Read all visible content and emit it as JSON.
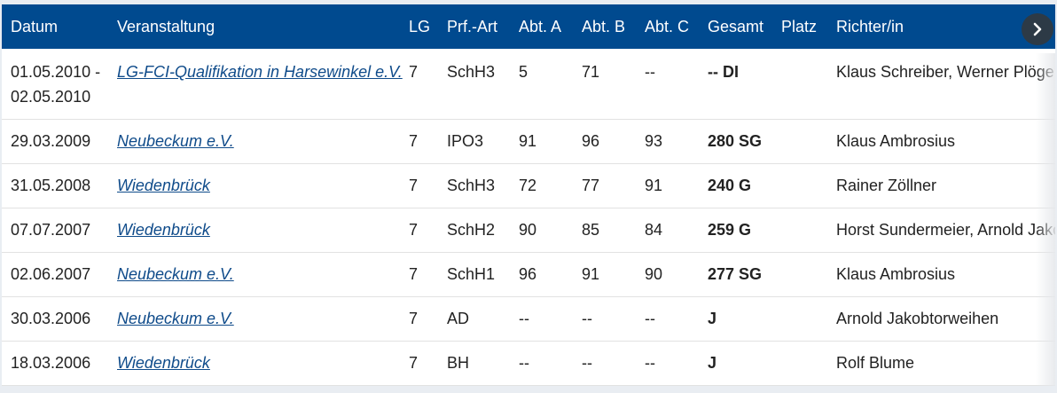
{
  "columns": [
    "Datum",
    "Veranstaltung",
    "LG",
    "Prf.-Art",
    "Abt. A",
    "Abt. B",
    "Abt. C",
    "Gesamt",
    "Platz",
    "Richter/in"
  ],
  "rows": [
    {
      "date": "01.05.2010 - 02.05.2010",
      "event": "LG-FCI-Qualifikation in Harsewinkel e.V.",
      "lg": "7",
      "type": "SchH3",
      "a": "5",
      "b": "71",
      "c": "--",
      "total": "-- DI",
      "place": "",
      "judge": "Klaus Schreiber, Werner Plöger,"
    },
    {
      "date": "29.03.2009",
      "event": "Neubeckum e.V.",
      "lg": "7",
      "type": "IPO3",
      "a": "91",
      "b": "96",
      "c": "93",
      "total": "280 SG",
      "place": "",
      "judge": "Klaus Ambrosius"
    },
    {
      "date": "31.05.2008",
      "event": "Wiedenbrück",
      "lg": "7",
      "type": "SchH3",
      "a": "72",
      "b": "77",
      "c": "91",
      "total": "240 G",
      "place": "",
      "judge": "Rainer Zöllner"
    },
    {
      "date": "07.07.2007",
      "event": "Wiedenbrück",
      "lg": "7",
      "type": "SchH2",
      "a": "90",
      "b": "85",
      "c": "84",
      "total": "259 G",
      "place": "",
      "judge": "Horst Sundermeier, Arnold Jako"
    },
    {
      "date": "02.06.2007",
      "event": "Neubeckum e.V.",
      "lg": "7",
      "type": "SchH1",
      "a": "96",
      "b": "91",
      "c": "90",
      "total": "277 SG",
      "place": "",
      "judge": "Klaus Ambrosius"
    },
    {
      "date": "30.03.2006",
      "event": "Neubeckum e.V.",
      "lg": "7",
      "type": "AD",
      "a": "--",
      "b": "--",
      "c": "--",
      "total": "J",
      "place": "",
      "judge": "Arnold Jakobtorweihen"
    },
    {
      "date": "18.03.2006",
      "event": "Wiedenbrück",
      "lg": "7",
      "type": "BH",
      "a": "--",
      "b": "--",
      "c": "--",
      "total": "J",
      "place": "",
      "judge": "Rolf Blume"
    }
  ],
  "scroll_button_icon": "chevron-right-icon"
}
